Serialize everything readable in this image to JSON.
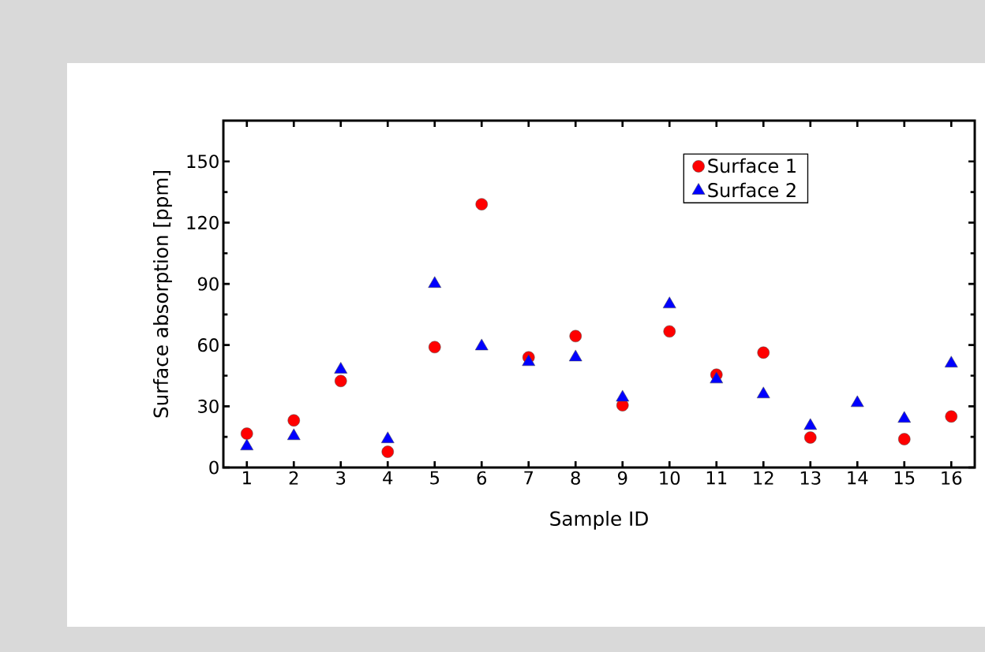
{
  "chart_data": {
    "type": "scatter",
    "xlabel": "Sample ID",
    "ylabel": "Surface absorption [ppm]",
    "categories": [
      "1",
      "2",
      "3",
      "4",
      "5",
      "6",
      "7",
      "8",
      "9",
      "10",
      "11",
      "12",
      "13",
      "14",
      "15",
      "16"
    ],
    "ylim": [
      0,
      170
    ],
    "yticks": [
      0,
      30,
      60,
      90,
      120,
      150
    ],
    "legend": "top right",
    "series": [
      {
        "name": "Surface 1",
        "color": "#ff0000",
        "marker": "circle",
        "values": [
          16.6,
          23.1,
          42.4,
          7.7,
          59,
          129,
          54,
          64.4,
          30.5,
          66.7,
          45.5,
          56.3,
          14.7,
          null,
          13.9,
          25
        ]
      },
      {
        "name": "Surface 2",
        "color": "#0000ff",
        "marker": "triangle",
        "values": [
          10.4,
          15.4,
          48,
          13.9,
          90,
          59.4,
          51.7,
          54,
          34.3,
          80,
          43.2,
          35.9,
          20.4,
          31.6,
          23.9,
          51
        ]
      }
    ]
  }
}
